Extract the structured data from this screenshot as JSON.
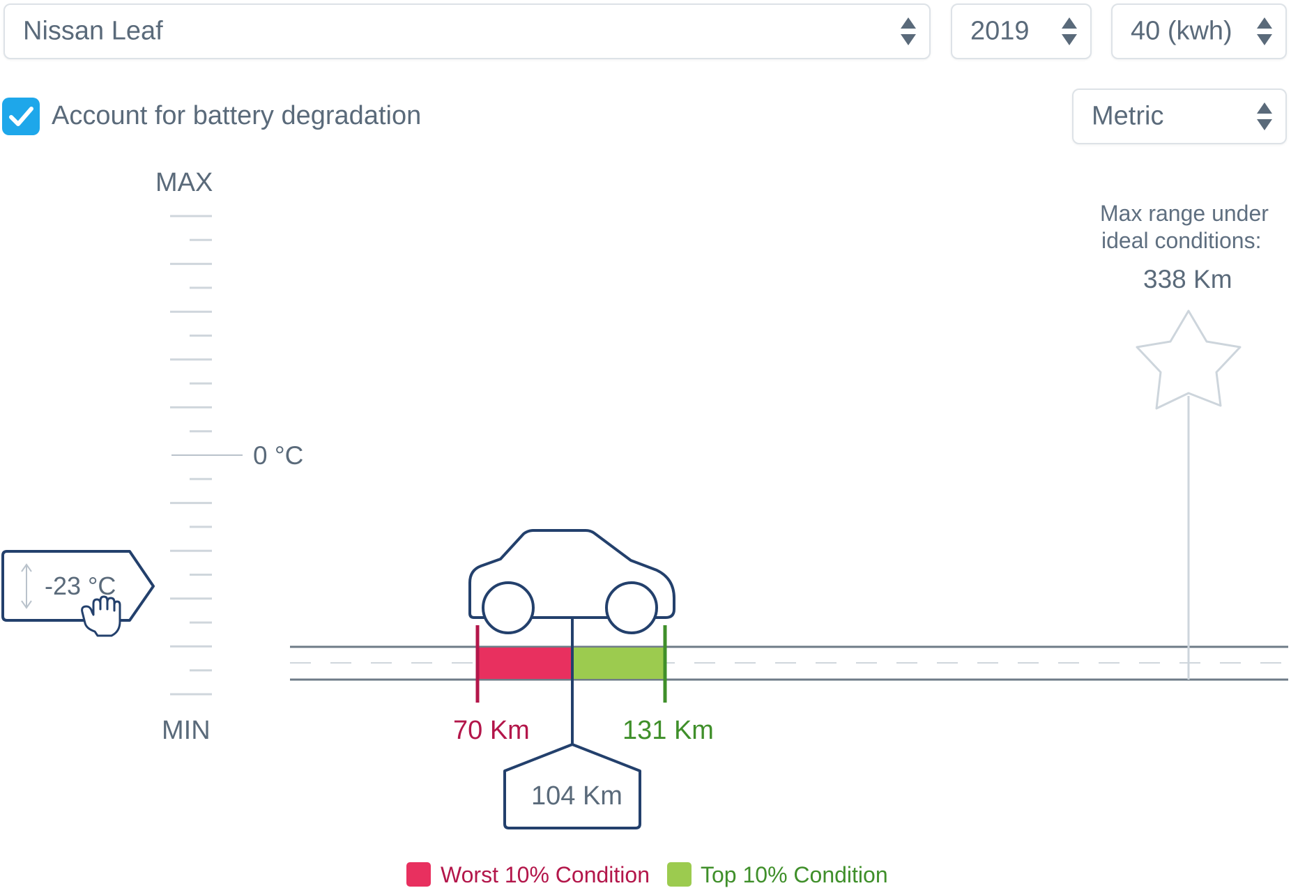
{
  "controls": {
    "model": {
      "value": "Nissan Leaf"
    },
    "year": {
      "value": "2019"
    },
    "battery": {
      "value": "40 (kwh)"
    },
    "units": {
      "value": "Metric"
    },
    "degradation": {
      "label": "Account for battery degradation",
      "checked": true
    }
  },
  "temperature_scale": {
    "max_label": "MAX",
    "min_label": "MIN",
    "zero_label": "0 °C",
    "slider_value": "-23 °C"
  },
  "range": {
    "worst": {
      "value": 70,
      "label": "70 Km",
      "color": "#b3164a",
      "fill": "#e8305f"
    },
    "top": {
      "value": 131,
      "label": "131 Km",
      "color": "#3f8f2a",
      "fill": "#9ccb4f"
    },
    "expected": {
      "value": 104,
      "label": "104 Km"
    },
    "max_ideal": {
      "value": 338,
      "caption_line1": "Max range under",
      "caption_line2": "ideal conditions:",
      "label": "338 Km"
    }
  },
  "legend": {
    "worst_label": "Worst 10% Condition",
    "top_label": "Top 10% Condition"
  },
  "colors": {
    "accent": "#1ea7ea",
    "navy": "#23406c",
    "muted": "#5f6f80",
    "road": "#6e7b87"
  }
}
